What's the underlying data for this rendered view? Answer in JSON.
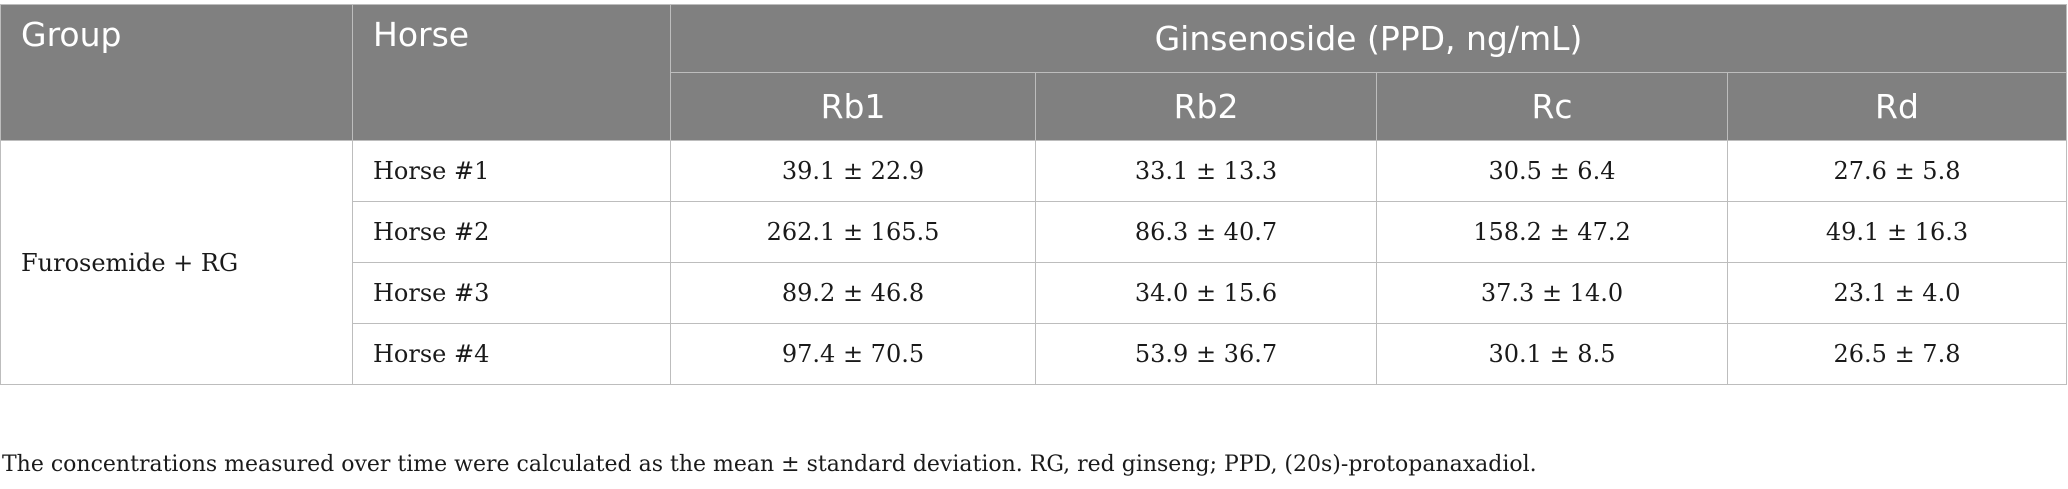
{
  "table": {
    "headers": {
      "group": "Group",
      "horse": "Horse",
      "ginsenoside": "Ginsenoside (PPD, ng/mL)",
      "compounds": [
        "Rb1",
        "Rb2",
        "Rc",
        "Rd"
      ]
    },
    "group_label": "Furosemide + RG",
    "rows": [
      {
        "horse": "Horse #1",
        "values": [
          "39.1 ± 22.9",
          "33.1 ± 13.3",
          "30.5 ± 6.4",
          "27.6 ± 5.8"
        ]
      },
      {
        "horse": "Horse #2",
        "values": [
          "262.1 ± 165.5",
          "86.3 ± 40.7",
          "158.2 ± 47.2",
          "49.1 ± 16.3"
        ]
      },
      {
        "horse": "Horse #3",
        "values": [
          "89.2 ± 46.8",
          "34.0 ± 15.6",
          "37.3 ± 14.0",
          "23.1 ± 4.0"
        ]
      },
      {
        "horse": "Horse #4",
        "values": [
          "97.4 ± 70.5",
          "53.9 ± 36.7",
          "30.1 ± 8.5",
          "26.5 ± 7.8"
        ]
      }
    ]
  },
  "footnote": "The concentrations measured over time were calculated as the mean ± standard deviation. RG, red ginseng; PPD, (20s)-protopanaxadiol.",
  "colors": {
    "header_bg": "#808080",
    "header_text": "#ffffff",
    "border": "#bdbdbd"
  }
}
